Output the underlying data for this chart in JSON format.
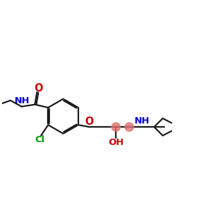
{
  "bg_color": "#ffffff",
  "bond_color": "#1a1a1a",
  "bond_width": 1.6,
  "O_color": "#cc0000",
  "N_color": "#0000cc",
  "Cl_color": "#009900",
  "highlight_color": "#e07070",
  "figsize": [
    3.0,
    3.0
  ],
  "dpi": 100,
  "xlim": [
    -1.5,
    8.5
  ],
  "ylim": [
    -1.8,
    3.8
  ]
}
